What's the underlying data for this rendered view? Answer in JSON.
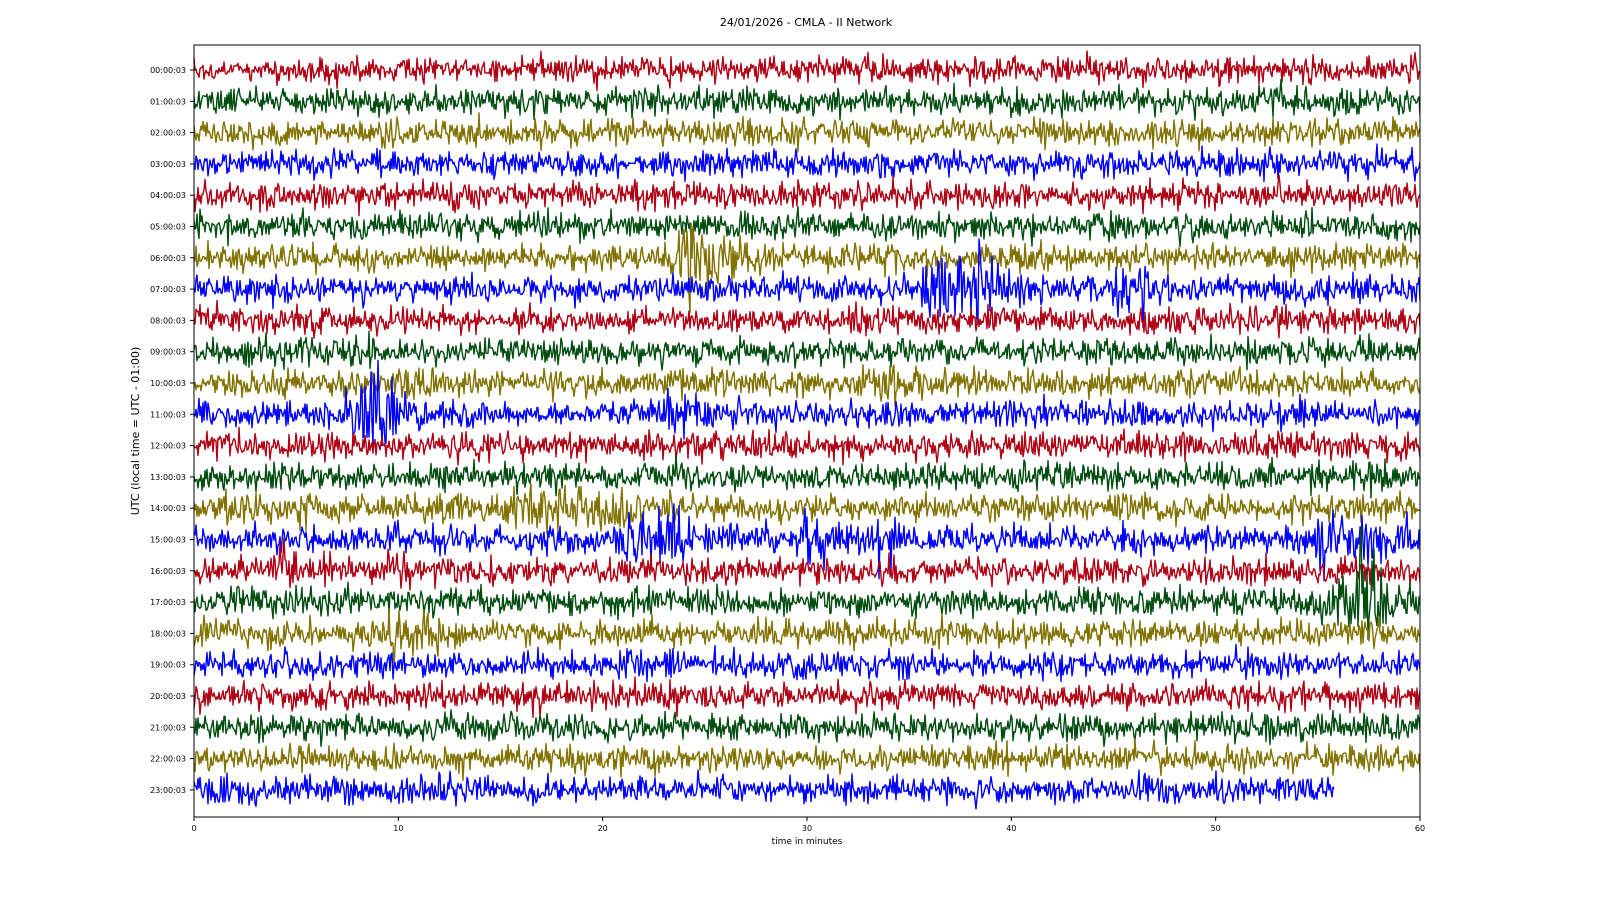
{
  "chart_data": {
    "type": "line",
    "title": "24/01/2026 - CMLA - II Network",
    "xlabel": "time in minutes",
    "ylabel": "UTC (local time = UTC - 01:00)",
    "xlim": [
      0,
      60
    ],
    "xticks": [
      "0",
      "10",
      "20",
      "30",
      "40",
      "50",
      "60"
    ],
    "grid": false,
    "legend": "none",
    "colors": [
      "#b00013",
      "#004d0f",
      "#827200",
      "#0000ff"
    ],
    "rows": [
      {
        "label": "00:00:03",
        "end_minute": 60,
        "events": []
      },
      {
        "label": "01:00:03",
        "end_minute": 60,
        "events": [
          {
            "t": 48.2,
            "amp": 0.6,
            "width": 0.4
          }
        ]
      },
      {
        "label": "02:00:03",
        "end_minute": 60,
        "events": []
      },
      {
        "label": "03:00:03",
        "end_minute": 60,
        "events": [
          {
            "t": 5.0,
            "amp": 0.8,
            "width": 0.6
          }
        ]
      },
      {
        "label": "04:00:03",
        "end_minute": 60,
        "events": []
      },
      {
        "label": "05:00:03",
        "end_minute": 60,
        "events": []
      },
      {
        "label": "06:00:03",
        "end_minute": 60,
        "events": [
          {
            "t": 24.2,
            "amp": 3.2,
            "width": 1.8
          }
        ]
      },
      {
        "label": "07:00:03",
        "end_minute": 60,
        "events": [
          {
            "t": 36.8,
            "amp": 2.2,
            "width": 2.6
          },
          {
            "t": 38.3,
            "amp": 2.0,
            "width": 0.6
          },
          {
            "t": 45.2,
            "amp": 1.2,
            "width": 0.6
          },
          {
            "t": 46.4,
            "amp": 1.0,
            "width": 0.5
          }
        ]
      },
      {
        "label": "08:00:03",
        "end_minute": 60,
        "events": []
      },
      {
        "label": "09:00:03",
        "end_minute": 60,
        "events": []
      },
      {
        "label": "10:00:03",
        "end_minute": 60,
        "events": [
          {
            "t": 34.0,
            "amp": 1.0,
            "width": 3.0
          }
        ]
      },
      {
        "label": "11:00:03",
        "end_minute": 60,
        "events": [
          {
            "t": 8.3,
            "amp": 2.8,
            "width": 2.0
          },
          {
            "t": 9.1,
            "amp": 2.4,
            "width": 0.6
          },
          {
            "t": 23.5,
            "amp": 0.9,
            "width": 1.2
          }
        ]
      },
      {
        "label": "12:00:03",
        "end_minute": 60,
        "events": []
      },
      {
        "label": "13:00:03",
        "end_minute": 60,
        "events": [
          {
            "t": 57.4,
            "amp": 0.8,
            "width": 0.8
          }
        ]
      },
      {
        "label": "14:00:03",
        "end_minute": 60,
        "events": [
          {
            "t": 2.0,
            "amp": 0.8,
            "width": 1.0
          },
          {
            "t": 5.2,
            "amp": 0.9,
            "width": 0.4
          },
          {
            "t": 17.2,
            "amp": 1.3,
            "width": 4.0
          },
          {
            "t": 20.5,
            "amp": 0.9,
            "width": 1.0
          }
        ]
      },
      {
        "label": "15:00:03",
        "end_minute": 60,
        "events": [
          {
            "t": 21.8,
            "amp": 2.0,
            "width": 2.5
          },
          {
            "t": 23.5,
            "amp": 1.2,
            "width": 0.6
          },
          {
            "t": 30.5,
            "amp": 1.0,
            "width": 2.0
          },
          {
            "t": 33.5,
            "amp": 1.6,
            "width": 1.5
          },
          {
            "t": 55.5,
            "amp": 1.4,
            "width": 2.0
          },
          {
            "t": 57.4,
            "amp": 1.6,
            "width": 1.2
          },
          {
            "t": 59.2,
            "amp": 1.0,
            "width": 0.8
          }
        ]
      },
      {
        "label": "16:00:03",
        "end_minute": 60,
        "events": [
          {
            "t": 4.5,
            "amp": 0.9,
            "width": 2.0
          },
          {
            "t": 9.6,
            "amp": 1.1,
            "width": 1.2
          }
        ]
      },
      {
        "label": "17:00:03",
        "end_minute": 60,
        "events": [
          {
            "t": 57.3,
            "amp": 3.0,
            "width": 1.6
          },
          {
            "t": 55.8,
            "amp": 1.1,
            "width": 2.0
          }
        ]
      },
      {
        "label": "18:00:03",
        "end_minute": 60,
        "events": [
          {
            "t": 9.8,
            "amp": 1.2,
            "width": 1.5
          },
          {
            "t": 11.5,
            "amp": 0.9,
            "width": 0.6
          }
        ]
      },
      {
        "label": "19:00:03",
        "end_minute": 60,
        "events": []
      },
      {
        "label": "20:00:03",
        "end_minute": 60,
        "events": []
      },
      {
        "label": "21:00:03",
        "end_minute": 60,
        "events": []
      },
      {
        "label": "22:00:03",
        "end_minute": 60,
        "events": []
      },
      {
        "label": "23:00:03",
        "end_minute": 55.8,
        "events": []
      }
    ]
  }
}
